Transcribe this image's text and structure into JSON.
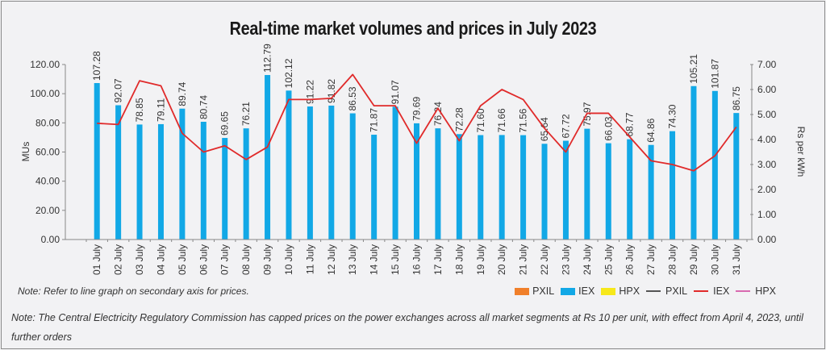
{
  "chart_data": {
    "type": "bar",
    "title": "Real-time market volumes and prices in July 2023",
    "xlabel": "",
    "ylabel": "MUs",
    "y2label": "Rs per kWh",
    "ylim": [
      0,
      120
    ],
    "y2lim": [
      0,
      7
    ],
    "yticks": [
      "0.00",
      "20.00",
      "40.00",
      "60.00",
      "80.00",
      "100.00",
      "120.00"
    ],
    "y2ticks": [
      "0.00",
      "1.00",
      "2.00",
      "3.00",
      "4.00",
      "5.00",
      "6.00",
      "7.00"
    ],
    "grid": false,
    "legend_position": "bottom-right",
    "categories": [
      "01 July",
      "02 July",
      "03 July",
      "04 July",
      "05 July",
      "06 July",
      "07 July",
      "08 July",
      "09 July",
      "10 July",
      "11 July",
      "12 July",
      "13 July",
      "14 July",
      "15 July",
      "16 July",
      "17 July",
      "18 July",
      "19 July",
      "20 July",
      "21 July",
      "22 July",
      "23 July",
      "24 July",
      "25 July",
      "26 July",
      "27 July",
      "28 July",
      "29 July",
      "30 July",
      "31 July"
    ],
    "series": [
      {
        "name": "IEX",
        "kind": "bar",
        "axis": "primary",
        "color": "#12a8e6",
        "values": [
          107.28,
          92.07,
          78.85,
          79.11,
          89.74,
          80.74,
          69.65,
          76.21,
          112.79,
          102.12,
          91.22,
          91.82,
          86.53,
          71.87,
          91.07,
          79.69,
          76.24,
          72.28,
          71.6,
          71.66,
          71.56,
          65.64,
          67.72,
          75.97,
          66.03,
          68.77,
          64.86,
          74.3,
          105.21,
          101.87,
          86.75
        ],
        "labels": [
          "107.28",
          "92.07",
          "78.85",
          "79.11",
          "89.74",
          "80.74",
          "69.65",
          "76.21",
          "112.79",
          "102.12",
          "91.22",
          "91.82",
          "86.53",
          "71.87",
          "91.07",
          "79.69",
          "76.24",
          "72.28",
          "71.60",
          "71.66",
          "71.56",
          "65.64",
          "67.72",
          "75.97",
          "66.03",
          "68.77",
          "64.86",
          "74.30",
          "105.21",
          "101.87",
          "86.75"
        ]
      },
      {
        "name": "IEX",
        "kind": "line",
        "axis": "secondary",
        "color": "#e02a2a",
        "values": [
          4.65,
          4.6,
          6.35,
          6.15,
          4.25,
          3.5,
          3.75,
          3.2,
          3.7,
          5.6,
          5.6,
          5.65,
          6.6,
          5.35,
          5.35,
          3.85,
          5.25,
          3.95,
          5.35,
          6.0,
          5.6,
          4.45,
          3.5,
          5.05,
          5.05,
          4.1,
          3.15,
          3.0,
          2.75,
          3.35,
          4.5
        ]
      }
    ],
    "legend": [
      {
        "label": "PXIL",
        "type": "box",
        "color": "#f07f2a"
      },
      {
        "label": "IEX",
        "type": "box",
        "color": "#12a8e6"
      },
      {
        "label": "HPX",
        "type": "box",
        "color": "#f7e81a"
      },
      {
        "label": "PXIL",
        "type": "line",
        "color": "#555555"
      },
      {
        "label": "IEX",
        "type": "line",
        "color": "#e02a2a"
      },
      {
        "label": "HPX",
        "type": "line",
        "color": "#d86ab0"
      }
    ]
  },
  "notes": {
    "note1": "Note: Refer to line graph on secondary axis for prices.",
    "note2": "Note: The Central Electricity Regulatory Commission has capped prices on the power exchanges across all market segments at Rs 10 per unit, with effect from April 4, 2023, until further orders"
  }
}
